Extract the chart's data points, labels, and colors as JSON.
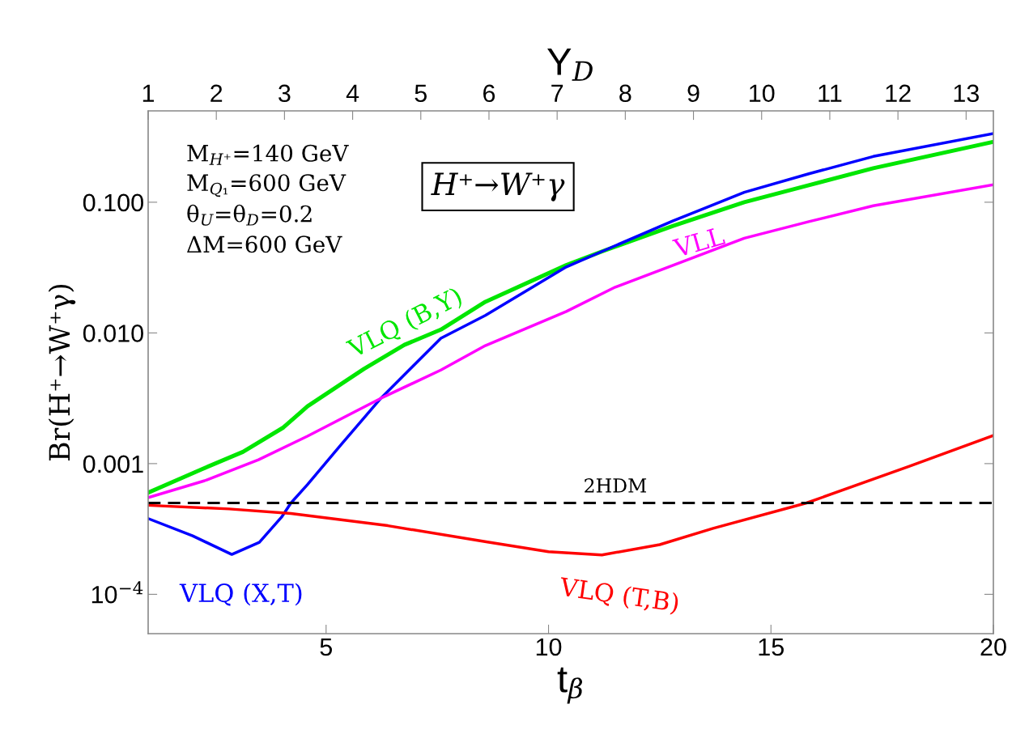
{
  "chart_data": {
    "type": "line",
    "xlabel": "t$_{β}$",
    "ylabel": "Br(H⁺→W⁺γ)",
    "x2label": "Y$_{D}$",
    "xlim": [
      1,
      20
    ],
    "xticks": [
      5,
      10,
      15,
      20
    ],
    "x2lim": [
      1,
      13.4
    ],
    "x2ticks": [
      1,
      2,
      3,
      4,
      5,
      6,
      7,
      8,
      9,
      10,
      11,
      12,
      13
    ],
    "ylim": [
      5e-05,
      0.5
    ],
    "log": "y",
    "yticks": [
      {
        "value": 0.1,
        "label": "0.100"
      },
      {
        "value": 0.01,
        "label": "0.010"
      },
      {
        "value": 0.001,
        "label": "0.001"
      },
      {
        "value": 0.0001,
        "label": "10$^{−4}$"
      }
    ],
    "grid": false,
    "line_style": "solid",
    "marker": "none",
    "annotations": [
      "M$_{H⁺}$=140 GeV",
      "M$_{Q₁}$=600 GeV",
      "θ$_{U}$=θ$_{D}$=0.2",
      "ΔM=600 GeV",
      "H⁺→W⁺γ"
    ],
    "ref_lines": [
      {
        "axis": "y",
        "value": 0.0005,
        "label": "2HDM",
        "color": "#000000",
        "line_style": "dashed"
      }
    ],
    "series": [
      {
        "name": "VLQ (B,Y)",
        "color": "#00e600",
        "x": [
          1,
          2.22,
          3.13,
          4.04,
          4.58,
          5.85,
          6.76,
          7.58,
          8.58,
          10.4,
          11.2,
          12.8,
          14.4,
          15.85,
          17.3,
          20
        ],
        "values": [
          0.0006,
          0.00091,
          0.00123,
          0.00189,
          0.00274,
          0.0053,
          0.0081,
          0.0106,
          0.0173,
          0.033,
          0.042,
          0.066,
          0.1,
          0.135,
          0.182,
          0.29
        ]
      },
      {
        "name": "VLQ (X,T)",
        "color": "#0000ff",
        "x": [
          1,
          2,
          2.88,
          3.5,
          4,
          4.21,
          4.58,
          5.33,
          6.23,
          7.58,
          8.58,
          10.4,
          11.2,
          12.8,
          14.4,
          15.85,
          17.3,
          20
        ],
        "values": [
          0.00038,
          0.00028,
          0.000202,
          0.00025,
          0.00039,
          0.0005,
          0.00069,
          0.00139,
          0.00316,
          0.0091,
          0.0136,
          0.032,
          0.042,
          0.072,
          0.119,
          0.165,
          0.224,
          0.335
        ]
      },
      {
        "name": "VLQ (T,B)",
        "color": "#ff0000",
        "x": [
          1,
          2.82,
          4.21,
          6.39,
          8.6,
          10.0,
          11.2,
          12.5,
          13.7,
          15.8,
          18.1,
          20
        ],
        "values": [
          0.00048,
          0.00045,
          0.000415,
          0.000335,
          0.000252,
          0.000212,
          0.0002,
          0.00024,
          0.00032,
          0.0005,
          0.00095,
          0.00164
        ]
      },
      {
        "name": "VLL",
        "color": "#ff00ff",
        "x": [
          1,
          2.27,
          3.48,
          4.58,
          6.23,
          7.58,
          8.58,
          10.4,
          11.5,
          13.0,
          14.4,
          15.85,
          17.3,
          20
        ],
        "values": [
          0.00055,
          0.00074,
          0.00107,
          0.00162,
          0.00316,
          0.0052,
          0.008,
          0.0146,
          0.0224,
          0.035,
          0.053,
          0.071,
          0.094,
          0.136
        ]
      }
    ]
  }
}
